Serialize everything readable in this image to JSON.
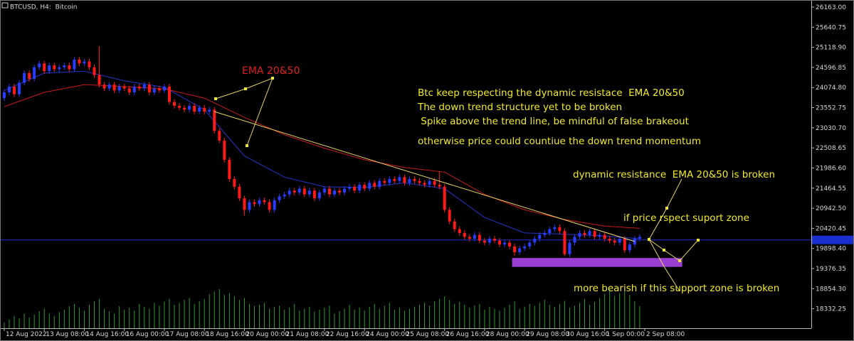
{
  "chart_data": {
    "type": "candlestick",
    "title": "BTCUSD, H4:  Bitcoin",
    "bull_color": "#2a3cff",
    "bear_color": "#ff1a1a",
    "volume_color": "#2e9a2e",
    "candles": [
      [
        23800,
        24020,
        23730,
        23950
      ],
      [
        23950,
        24170,
        23880,
        24100
      ],
      [
        24100,
        24170,
        23830,
        23900
      ],
      [
        23900,
        24270,
        23830,
        24200
      ],
      [
        24200,
        24520,
        24130,
        24450
      ],
      [
        24450,
        24520,
        24230,
        24300
      ],
      [
        24300,
        24670,
        24230,
        24600
      ],
      [
        24600,
        24770,
        24530,
        24700
      ],
      [
        24700,
        24770,
        24430,
        24500
      ],
      [
        24500,
        24720,
        24430,
        24650
      ],
      [
        24650,
        24720,
        24480,
        24550
      ],
      [
        24550,
        24670,
        24480,
        24600
      ],
      [
        24600,
        24720,
        24530,
        24650
      ],
      [
        24650,
        24720,
        24480,
        24550
      ],
      [
        24550,
        24870,
        24480,
        24800
      ],
      [
        24800,
        24870,
        24630,
        24700
      ],
      [
        24700,
        24820,
        24630,
        24750
      ],
      [
        24750,
        24820,
        24530,
        24600
      ],
      [
        24600,
        24670,
        24330,
        24400
      ],
      [
        24400,
        25150,
        24080,
        24150
      ],
      [
        24150,
        24220,
        23980,
        24050
      ],
      [
        24050,
        24220,
        23980,
        24150
      ],
      [
        24150,
        24220,
        23930,
        24000
      ],
      [
        24000,
        24170,
        23930,
        24100
      ],
      [
        24100,
        24170,
        23980,
        24050
      ],
      [
        24050,
        24120,
        23880,
        23950
      ],
      [
        23950,
        24170,
        23880,
        24100
      ],
      [
        24100,
        24170,
        23980,
        24050
      ],
      [
        24050,
        24220,
        23980,
        24150
      ],
      [
        24150,
        24220,
        23880,
        23950
      ],
      [
        23950,
        24120,
        23880,
        24050
      ],
      [
        24050,
        24120,
        23930,
        24000
      ],
      [
        24000,
        24170,
        23930,
        24100
      ],
      [
        24100,
        24170,
        23630,
        23700
      ],
      [
        23700,
        23770,
        23530,
        23600
      ],
      [
        23600,
        23670,
        23480,
        23550
      ],
      [
        23550,
        23620,
        23430,
        23500
      ],
      [
        23500,
        23670,
        23430,
        23600
      ],
      [
        23600,
        23670,
        23380,
        23450
      ],
      [
        23450,
        23620,
        23380,
        23550
      ],
      [
        23550,
        23620,
        23380,
        23450
      ],
      [
        23450,
        23570,
        23380,
        23500
      ],
      [
        23500,
        23570,
        22880,
        22950
      ],
      [
        22950,
        23020,
        22630,
        22700
      ],
      [
        22700,
        22770,
        22130,
        22200
      ],
      [
        22200,
        22270,
        21630,
        21700
      ],
      [
        21700,
        21770,
        21430,
        21500
      ],
      [
        21500,
        21570,
        21130,
        21200
      ],
      [
        21200,
        21270,
        20750,
        20900
      ],
      [
        20900,
        21170,
        20830,
        21100
      ],
      [
        21100,
        21170,
        20980,
        21050
      ],
      [
        21050,
        21220,
        20980,
        21150
      ],
      [
        21150,
        21220,
        21030,
        21100
      ],
      [
        21100,
        21170,
        20830,
        20900
      ],
      [
        20900,
        21220,
        20830,
        21150
      ],
      [
        21150,
        21320,
        21080,
        21250
      ],
      [
        21250,
        21370,
        21180,
        21300
      ],
      [
        21300,
        21470,
        21230,
        21400
      ],
      [
        21400,
        21470,
        21280,
        21350
      ],
      [
        21350,
        21520,
        21280,
        21450
      ],
      [
        21450,
        21520,
        21230,
        21300
      ],
      [
        21300,
        21470,
        21230,
        21400
      ],
      [
        21400,
        21470,
        21130,
        21200
      ],
      [
        21200,
        21420,
        21130,
        21350
      ],
      [
        21350,
        21520,
        21280,
        21450
      ],
      [
        21450,
        21520,
        21230,
        21300
      ],
      [
        21300,
        21470,
        21230,
        21400
      ],
      [
        21400,
        21470,
        21280,
        21350
      ],
      [
        21350,
        21520,
        21280,
        21450
      ],
      [
        21450,
        21570,
        21380,
        21500
      ],
      [
        21500,
        21570,
        21330,
        21400
      ],
      [
        21400,
        21620,
        21330,
        21550
      ],
      [
        21550,
        21620,
        21380,
        21450
      ],
      [
        21450,
        21670,
        21380,
        21600
      ],
      [
        21600,
        21670,
        21430,
        21500
      ],
      [
        21500,
        21720,
        21430,
        21650
      ],
      [
        21650,
        21720,
        21530,
        21600
      ],
      [
        21600,
        21770,
        21530,
        21700
      ],
      [
        21700,
        21770,
        21580,
        21650
      ],
      [
        21650,
        21820,
        21580,
        21750
      ],
      [
        21750,
        21820,
        21530,
        21600
      ],
      [
        21600,
        21770,
        21530,
        21700
      ],
      [
        21700,
        21770,
        21580,
        21650
      ],
      [
        21650,
        21720,
        21530,
        21600
      ],
      [
        21600,
        21670,
        21480,
        21550
      ],
      [
        21550,
        21720,
        21480,
        21650
      ],
      [
        21650,
        21720,
        21480,
        21550
      ],
      [
        21550,
        21900,
        21430,
        21500
      ],
      [
        21500,
        21570,
        20830,
        20900
      ],
      [
        20900,
        20970,
        20530,
        20600
      ],
      [
        20600,
        20670,
        20330,
        20400
      ],
      [
        20400,
        20470,
        20230,
        20300
      ],
      [
        20300,
        20370,
        20130,
        20200
      ],
      [
        20200,
        20270,
        20080,
        20150
      ],
      [
        20150,
        20320,
        20080,
        20250
      ],
      [
        20250,
        20320,
        20030,
        20100
      ],
      [
        20100,
        20170,
        19980,
        20050
      ],
      [
        20050,
        20220,
        19980,
        20150
      ],
      [
        20150,
        20220,
        20030,
        20100
      ],
      [
        20100,
        20170,
        19930,
        20000
      ],
      [
        20000,
        20120,
        19930,
        20050
      ],
      [
        20050,
        20120,
        19880,
        19950
      ],
      [
        19950,
        20020,
        19700,
        19800
      ],
      [
        19800,
        19970,
        19730,
        19900
      ],
      [
        19900,
        20020,
        19830,
        19950
      ],
      [
        19950,
        20120,
        19880,
        20050
      ],
      [
        20050,
        20220,
        19980,
        20150
      ],
      [
        20150,
        20320,
        20080,
        20250
      ],
      [
        20250,
        20370,
        20180,
        20300
      ],
      [
        20300,
        20470,
        20230,
        20400
      ],
      [
        20400,
        20520,
        20330,
        20450
      ],
      [
        20450,
        20520,
        20280,
        20350
      ],
      [
        20350,
        20420,
        19700,
        19750
      ],
      [
        19750,
        20120,
        19680,
        20050
      ],
      [
        20050,
        20270,
        19980,
        20200
      ],
      [
        20200,
        20370,
        20130,
        20300
      ],
      [
        20300,
        20370,
        20180,
        20250
      ],
      [
        20250,
        20420,
        20180,
        20350
      ],
      [
        20350,
        20420,
        20130,
        20200
      ],
      [
        20200,
        20320,
        20130,
        20250
      ],
      [
        20250,
        20320,
        20080,
        20150
      ],
      [
        20150,
        20220,
        20030,
        20100
      ],
      [
        20100,
        20170,
        19980,
        20050
      ],
      [
        20050,
        20220,
        19980,
        20150
      ],
      [
        20150,
        20220,
        19780,
        19850
      ],
      [
        19850,
        20070,
        19780,
        20000
      ],
      [
        20000,
        20220,
        19930,
        20150
      ],
      [
        20150,
        20270,
        20080,
        20200
      ]
    ],
    "volumes": [
      12,
      18,
      25,
      20,
      30,
      22,
      28,
      35,
      40,
      30,
      25,
      33,
      38,
      45,
      50,
      42,
      36,
      48,
      55,
      60,
      40,
      35,
      30,
      45,
      38,
      42,
      36,
      50,
      44,
      40,
      52,
      46,
      55,
      60,
      48,
      52,
      58,
      62,
      50,
      55,
      60,
      70,
      75,
      80,
      68,
      72,
      65,
      58,
      62,
      50,
      45,
      48,
      52,
      40,
      44,
      46,
      38,
      42,
      50,
      36,
      40,
      44,
      34,
      38,
      42,
      46,
      30,
      35,
      40,
      48,
      38,
      42,
      36,
      44,
      50,
      40,
      46,
      52,
      38,
      42,
      36,
      40,
      44,
      48,
      52,
      46,
      55,
      60,
      65,
      58,
      50,
      54,
      48,
      42,
      46,
      50,
      38,
      44,
      40,
      36,
      42,
      48,
      55,
      40,
      44,
      50,
      46,
      52,
      58,
      48,
      44,
      50,
      56,
      42,
      46,
      52,
      60,
      48,
      54,
      62,
      70,
      80,
      66,
      72,
      76,
      68,
      55,
      45
    ],
    "series": [
      {
        "color": "#2236c8",
        "x": [
          0,
          8,
          16,
          24,
          32,
          40,
          48,
          56,
          64,
          72,
          80,
          88,
          96,
          104,
          112,
          120,
          127
        ],
        "values": [
          24000,
          24450,
          24500,
          24250,
          24080,
          23500,
          22300,
          21750,
          21500,
          21480,
          21600,
          21450,
          20700,
          20300,
          20270,
          20220,
          20150
        ]
      },
      {
        "color": "#c81c1c",
        "x": [
          0,
          8,
          16,
          24,
          32,
          40,
          48,
          56,
          64,
          72,
          80,
          88,
          96,
          104,
          112,
          120,
          127
        ],
        "values": [
          23580,
          23950,
          24150,
          24100,
          24040,
          23800,
          23300,
          22850,
          22500,
          22200,
          22000,
          21880,
          21300,
          20900,
          20650,
          20480,
          20420
        ]
      }
    ],
    "trend_line": {
      "color": "#e8d46a",
      "x": [
        42,
        126
      ],
      "values": [
        23450,
        20080
      ]
    },
    "support_zone": {
      "color": "#9b3fd4",
      "x": [
        101.5,
        135.5
      ],
      "values": [
        19420,
        19650
      ]
    },
    "price_line": {
      "color": "#1a2fd0",
      "value": 20120
    },
    "xlim": [
      -0.85,
      161.3
    ],
    "ylim": [
      17828,
      26347
    ],
    "xticks": [
      {
        "value": 0,
        "label": "12 Aug 2022"
      },
      {
        "value": 8,
        "label": "13 Aug 08:00"
      },
      {
        "value": 16,
        "label": "14 Aug 16:00"
      },
      {
        "value": 24,
        "label": "16 Aug 00:00"
      },
      {
        "value": 32,
        "label": "17 Aug 08:00"
      },
      {
        "value": 40,
        "label": "18 Aug 16:00"
      },
      {
        "value": 48,
        "label": "20 Aug 00:00"
      },
      {
        "value": 56,
        "label": "21 Aug 08:00"
      },
      {
        "value": 64,
        "label": "22 Aug 16:00"
      },
      {
        "value": 72,
        "label": "24 Aug 00:00"
      },
      {
        "value": 80,
        "label": "25 Aug 08:00"
      },
      {
        "value": 88,
        "label": "26 Aug 16:00"
      },
      {
        "value": 96,
        "label": "28 Aug 00:00"
      },
      {
        "value": 104,
        "label": "29 Aug 08:00"
      },
      {
        "value": 112,
        "label": "30 Aug 16:00"
      },
      {
        "value": 120,
        "label": "1 Sep 00:00"
      },
      {
        "value": 128,
        "label": "2 Sep 08:00"
      }
    ],
    "yticks": [
      {
        "value": 26163,
        "label": "26163.00"
      },
      {
        "value": 25640.75,
        "label": "25640.75"
      },
      {
        "value": 25118.9,
        "label": "25118.90"
      },
      {
        "value": 24596.85,
        "label": "24596.85"
      },
      {
        "value": 24074.8,
        "label": "24074.80"
      },
      {
        "value": 23552.75,
        "label": "23552.75"
      },
      {
        "value": 23030.7,
        "label": "23030.70"
      },
      {
        "value": 22508.65,
        "label": "22508.65"
      },
      {
        "value": 21986.6,
        "label": "21986.60"
      },
      {
        "value": 21464.55,
        "label": "21464.55"
      },
      {
        "value": 20942.5,
        "label": "20942.50"
      },
      {
        "value": 20420.45,
        "label": "20420.45"
      },
      {
        "value": 19898.4,
        "label": "19898.40"
      },
      {
        "value": 19376.35,
        "label": "19376.35"
      },
      {
        "value": 18854.3,
        "label": "18854.30"
      },
      {
        "value": 18332.25,
        "label": "18332.25"
      }
    ],
    "annotations": [
      "EMA 20&50",
      "Btc keep respecting the dynamic resistace  EMA 20&50",
      "The down trend structure yet to be broken",
      " Spike above the trend line, be mindful of false brakeout",
      "otherwise price could countiue the down trend momentum",
      "dynamic resistance  EMA 20&50 is broken",
      "if price rspect suport zone",
      "more bearish if this support zone is broken"
    ]
  }
}
